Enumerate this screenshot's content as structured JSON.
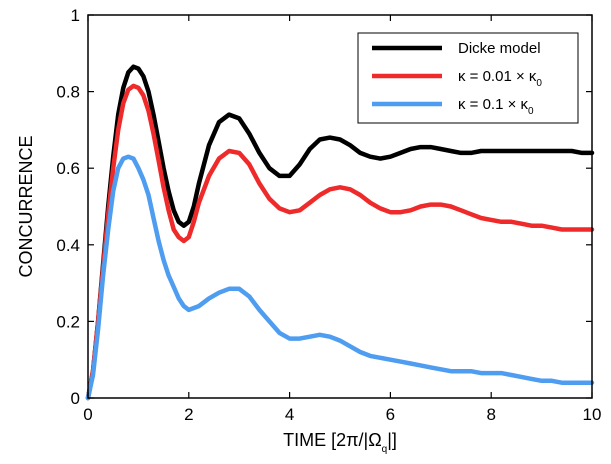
{
  "chart_data": {
    "type": "line",
    "title": "",
    "xlabel": "TIME  [2π/|Ω",
    "xlabel_sub": "q",
    "xlabel_tail": "|]",
    "ylabel": "CONCURRENCE",
    "xlim": [
      0,
      10
    ],
    "ylim": [
      0,
      1
    ],
    "xticks": [
      0,
      2,
      4,
      6,
      8,
      10
    ],
    "yticks": [
      0,
      0.2,
      0.4,
      0.6,
      0.8,
      1
    ],
    "ytick_labels": [
      "0",
      "0.2",
      "0.4",
      "0.6",
      "0.8",
      "1"
    ],
    "grid": false,
    "legend_position": "top-right",
    "series": [
      {
        "name": "Dicke model",
        "legend_text": "Dicke model",
        "color": "#000000",
        "x": [
          0,
          0.1,
          0.2,
          0.3,
          0.4,
          0.5,
          0.6,
          0.7,
          0.8,
          0.9,
          1.0,
          1.1,
          1.2,
          1.3,
          1.4,
          1.5,
          1.6,
          1.7,
          1.8,
          1.9,
          2.0,
          2.1,
          2.2,
          2.4,
          2.6,
          2.8,
          3.0,
          3.2,
          3.4,
          3.6,
          3.8,
          4.0,
          4.2,
          4.4,
          4.6,
          4.8,
          5.0,
          5.2,
          5.4,
          5.6,
          5.8,
          6.0,
          6.2,
          6.4,
          6.6,
          6.8,
          7.0,
          7.2,
          7.4,
          7.6,
          7.8,
          8.0,
          8.2,
          8.4,
          8.6,
          8.8,
          9.0,
          9.2,
          9.4,
          9.6,
          9.8,
          10.0
        ],
        "y": [
          0.0,
          0.07,
          0.2,
          0.35,
          0.5,
          0.63,
          0.74,
          0.81,
          0.85,
          0.865,
          0.86,
          0.84,
          0.8,
          0.74,
          0.67,
          0.6,
          0.54,
          0.49,
          0.46,
          0.45,
          0.46,
          0.5,
          0.56,
          0.66,
          0.72,
          0.74,
          0.73,
          0.69,
          0.64,
          0.6,
          0.58,
          0.58,
          0.61,
          0.65,
          0.675,
          0.68,
          0.675,
          0.66,
          0.64,
          0.63,
          0.625,
          0.63,
          0.64,
          0.65,
          0.655,
          0.655,
          0.65,
          0.645,
          0.64,
          0.64,
          0.645,
          0.645,
          0.645,
          0.645,
          0.645,
          0.645,
          0.645,
          0.645,
          0.645,
          0.645,
          0.64,
          0.64
        ]
      },
      {
        "name": "κ = 0.01 × κ0",
        "legend_text": "κ = 0.01 × κ",
        "legend_sub": "0",
        "color": "#ee2a2a",
        "x": [
          0,
          0.1,
          0.2,
          0.3,
          0.4,
          0.5,
          0.6,
          0.7,
          0.8,
          0.9,
          1.0,
          1.1,
          1.2,
          1.3,
          1.4,
          1.5,
          1.6,
          1.7,
          1.8,
          1.9,
          2.0,
          2.1,
          2.2,
          2.4,
          2.6,
          2.8,
          3.0,
          3.2,
          3.4,
          3.6,
          3.8,
          4.0,
          4.2,
          4.4,
          4.6,
          4.8,
          5.0,
          5.2,
          5.4,
          5.6,
          5.8,
          6.0,
          6.2,
          6.4,
          6.6,
          6.8,
          7.0,
          7.2,
          7.4,
          7.6,
          7.8,
          8.0,
          8.2,
          8.4,
          8.6,
          8.8,
          9.0,
          9.2,
          9.4,
          9.6,
          9.8,
          10.0
        ],
        "y": [
          0.0,
          0.07,
          0.2,
          0.34,
          0.48,
          0.6,
          0.7,
          0.77,
          0.805,
          0.815,
          0.81,
          0.79,
          0.75,
          0.69,
          0.62,
          0.55,
          0.49,
          0.44,
          0.42,
          0.41,
          0.42,
          0.46,
          0.51,
          0.58,
          0.625,
          0.645,
          0.64,
          0.61,
          0.56,
          0.52,
          0.495,
          0.485,
          0.49,
          0.51,
          0.53,
          0.545,
          0.55,
          0.545,
          0.53,
          0.51,
          0.495,
          0.485,
          0.485,
          0.49,
          0.5,
          0.505,
          0.505,
          0.5,
          0.49,
          0.48,
          0.47,
          0.465,
          0.46,
          0.46,
          0.455,
          0.45,
          0.45,
          0.445,
          0.44,
          0.44,
          0.44,
          0.44
        ]
      },
      {
        "name": "κ = 0.1 × κ0",
        "legend_text": "κ = 0.1 × κ",
        "legend_sub": "0",
        "color": "#4f9df0",
        "x": [
          0,
          0.1,
          0.2,
          0.3,
          0.4,
          0.5,
          0.6,
          0.7,
          0.8,
          0.9,
          1.0,
          1.1,
          1.2,
          1.3,
          1.4,
          1.5,
          1.6,
          1.7,
          1.8,
          1.9,
          2.0,
          2.2,
          2.4,
          2.6,
          2.8,
          3.0,
          3.2,
          3.4,
          3.6,
          3.8,
          4.0,
          4.2,
          4.4,
          4.6,
          4.8,
          5.0,
          5.2,
          5.4,
          5.6,
          5.8,
          6.0,
          6.2,
          6.4,
          6.6,
          6.8,
          7.0,
          7.2,
          7.4,
          7.6,
          7.8,
          8.0,
          8.2,
          8.4,
          8.6,
          8.8,
          9.0,
          9.2,
          9.4,
          9.6,
          9.8,
          10.0
        ],
        "y": [
          0.0,
          0.06,
          0.18,
          0.32,
          0.44,
          0.54,
          0.6,
          0.625,
          0.63,
          0.625,
          0.6,
          0.57,
          0.53,
          0.47,
          0.41,
          0.36,
          0.32,
          0.29,
          0.26,
          0.24,
          0.23,
          0.24,
          0.26,
          0.275,
          0.285,
          0.285,
          0.265,
          0.23,
          0.2,
          0.17,
          0.155,
          0.155,
          0.16,
          0.165,
          0.16,
          0.15,
          0.135,
          0.12,
          0.11,
          0.105,
          0.1,
          0.095,
          0.09,
          0.085,
          0.08,
          0.075,
          0.07,
          0.07,
          0.07,
          0.065,
          0.065,
          0.065,
          0.06,
          0.055,
          0.05,
          0.045,
          0.045,
          0.04,
          0.04,
          0.04,
          0.04
        ]
      }
    ]
  }
}
